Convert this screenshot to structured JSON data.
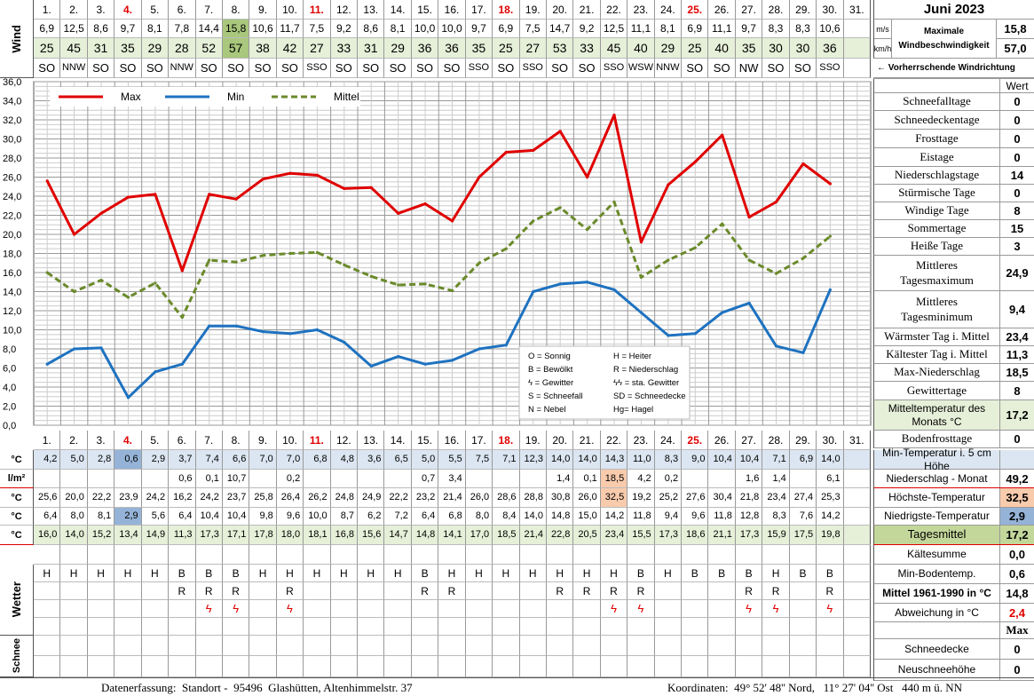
{
  "month_title": "Juni 2023",
  "section_labels": {
    "wind": "Wind",
    "schnee": "Schnee",
    "wetter": "Wetter",
    "unit_temp": "°C",
    "unit_precip": "l/m²",
    "unit_ms": "m/s",
    "unit_kmh": "km/h"
  },
  "days": [
    "1.",
    "2.",
    "3.",
    "4.",
    "5.",
    "6.",
    "7.",
    "8.",
    "9.",
    "10.",
    "11.",
    "12.",
    "13.",
    "14.",
    "15.",
    "16.",
    "17.",
    "18.",
    "19.",
    "20.",
    "21.",
    "22.",
    "23.",
    "24.",
    "25.",
    "26.",
    "27.",
    "28.",
    "29.",
    "30.",
    "31."
  ],
  "red_days": [
    3,
    10,
    17,
    24
  ],
  "wind_ms": [
    "6,9",
    "12,5",
    "8,6",
    "9,7",
    "8,1",
    "7,8",
    "14,4",
    "15,8",
    "10,6",
    "11,7",
    "7,5",
    "9,2",
    "8,6",
    "8,1",
    "10,0",
    "10,0",
    "9,7",
    "6,9",
    "7,5",
    "14,7",
    "9,2",
    "12,5",
    "11,1",
    "8,1",
    "6,9",
    "11,1",
    "9,7",
    "8,3",
    "8,3",
    "10,6",
    ""
  ],
  "wind_kmh": [
    "25",
    "45",
    "31",
    "35",
    "29",
    "28",
    "52",
    "57",
    "38",
    "42",
    "27",
    "33",
    "31",
    "29",
    "36",
    "36",
    "35",
    "25",
    "27",
    "53",
    "33",
    "45",
    "40",
    "29",
    "25",
    "40",
    "35",
    "30",
    "30",
    "36",
    ""
  ],
  "wind_dir": [
    "SO",
    "NNW",
    "SO",
    "SO",
    "SO",
    "NNW",
    "SO",
    "SO",
    "SO",
    "SO",
    "SSO",
    "SO",
    "SO",
    "SO",
    "SO",
    "SO",
    "SSO",
    "SO",
    "SSO",
    "SO",
    "SO",
    "SSO",
    "WSW",
    "NNW",
    "SO",
    "SO",
    "NW",
    "SO",
    "SO",
    "SSO",
    ""
  ],
  "max_wind": {
    "label": "Maximale Windbeschwindigkeit",
    "ms": "15,8",
    "kmh": "57,0"
  },
  "prevailing_note": "← Vorherrschende Windrichtung",
  "chart_data": {
    "type": "line",
    "x": [
      1,
      2,
      3,
      4,
      5,
      6,
      7,
      8,
      9,
      10,
      11,
      12,
      13,
      14,
      15,
      16,
      17,
      18,
      19,
      20,
      21,
      22,
      23,
      24,
      25,
      26,
      27,
      28,
      29,
      30
    ],
    "series": [
      {
        "name": "Max",
        "color": "#e00000",
        "values": [
          25.6,
          20.0,
          22.2,
          23.9,
          24.2,
          16.2,
          24.2,
          23.7,
          25.8,
          26.4,
          26.2,
          24.8,
          24.9,
          22.2,
          23.2,
          21.4,
          26.0,
          28.6,
          28.8,
          30.8,
          26.0,
          32.5,
          19.2,
          25.2,
          27.6,
          30.4,
          21.8,
          23.4,
          27.4,
          25.3
        ]
      },
      {
        "name": "Min",
        "color": "#1e72c0",
        "values": [
          6.4,
          8.0,
          8.1,
          2.9,
          5.6,
          6.4,
          10.4,
          10.4,
          9.8,
          9.6,
          10.0,
          8.7,
          6.2,
          7.2,
          6.4,
          6.8,
          8.0,
          8.4,
          14.0,
          14.8,
          15.0,
          14.2,
          11.8,
          9.4,
          9.6,
          11.8,
          12.8,
          8.3,
          7.6,
          14.2
        ]
      },
      {
        "name": "Mittel",
        "color": "#6a8a2a",
        "dashed": true,
        "values": [
          16.0,
          14.0,
          15.2,
          13.4,
          14.9,
          11.3,
          17.3,
          17.1,
          17.8,
          18.0,
          18.1,
          16.8,
          15.6,
          14.7,
          14.8,
          14.1,
          17.0,
          18.5,
          21.4,
          22.8,
          20.5,
          23.4,
          15.5,
          17.3,
          18.6,
          21.1,
          17.3,
          15.9,
          17.5,
          19.8
        ]
      }
    ],
    "ylim": [
      0,
      36
    ],
    "y_ticks": [
      "36,0",
      "34,0",
      "32,0",
      "30,0",
      "28,0",
      "26,0",
      "24,0",
      "22,0",
      "20,0",
      "18,0",
      "16,0",
      "14,0",
      "12,0",
      "10,0",
      "8,0",
      "6,0",
      "4,0",
      "2,0",
      "0,0"
    ],
    "grid": true,
    "legend_position": "top-left"
  },
  "weather_legend": [
    [
      "O = Sonnig",
      "H = Heiter"
    ],
    [
      "B = Bewölkt",
      "R = Niederschlag"
    ],
    [
      "ϟ = Gewitter",
      "ϟϟ = sta. Gewitter"
    ],
    [
      "S = Schneefall",
      "SD = Schneedecke"
    ],
    [
      "N = Nebel",
      "Hg= Hagel"
    ]
  ],
  "ground_min": [
    "4,2",
    "5,0",
    "2,8",
    "0,6",
    "2,9",
    "3,7",
    "7,4",
    "6,6",
    "7,0",
    "7,0",
    "6,8",
    "4,8",
    "3,6",
    "6,5",
    "5,0",
    "5,5",
    "7,5",
    "7,1",
    "12,3",
    "14,0",
    "14,0",
    "14,3",
    "11,0",
    "8,3",
    "9,0",
    "10,4",
    "10,4",
    "7,1",
    "6,9",
    "14,0",
    ""
  ],
  "precip": [
    "",
    "",
    "",
    "",
    "",
    "0,6",
    "0,1",
    "10,7",
    "",
    "0,2",
    "",
    "",
    "",
    "",
    "0,7",
    "3,4",
    "",
    "",
    "",
    "1,4",
    "0,1",
    "18,5",
    "4,2",
    "0,2",
    "",
    "",
    "1,6",
    "1,4",
    "",
    "6,1",
    ""
  ],
  "tmax": [
    "25,6",
    "20,0",
    "22,2",
    "23,9",
    "24,2",
    "16,2",
    "24,2",
    "23,7",
    "25,8",
    "26,4",
    "26,2",
    "24,8",
    "24,9",
    "22,2",
    "23,2",
    "21,4",
    "26,0",
    "28,6",
    "28,8",
    "30,8",
    "26,0",
    "32,5",
    "19,2",
    "25,2",
    "27,6",
    "30,4",
    "21,8",
    "23,4",
    "27,4",
    "25,3",
    ""
  ],
  "tmin": [
    "6,4",
    "8,0",
    "8,1",
    "2,9",
    "5,6",
    "6,4",
    "10,4",
    "10,4",
    "9,8",
    "9,6",
    "10,0",
    "8,7",
    "6,2",
    "7,2",
    "6,4",
    "6,8",
    "8,0",
    "8,4",
    "14,0",
    "14,8",
    "15,0",
    "14,2",
    "11,8",
    "9,4",
    "9,6",
    "11,8",
    "12,8",
    "8,3",
    "7,6",
    "14,2",
    ""
  ],
  "tmean": [
    "16,0",
    "14,0",
    "15,2",
    "13,4",
    "14,9",
    "11,3",
    "17,3",
    "17,1",
    "17,8",
    "18,0",
    "18,1",
    "16,8",
    "15,6",
    "14,7",
    "14,8",
    "14,1",
    "17,0",
    "18,5",
    "21,4",
    "22,8",
    "20,5",
    "23,4",
    "15,5",
    "17,3",
    "18,6",
    "21,1",
    "17,3",
    "15,9",
    "17,5",
    "19,8",
    ""
  ],
  "wetter1": [
    "H",
    "H",
    "H",
    "H",
    "H",
    "B",
    "B",
    "B",
    "H",
    "H",
    "H",
    "H",
    "H",
    "H",
    "B",
    "H",
    "H",
    "H",
    "H",
    "H",
    "H",
    "H",
    "B",
    "H",
    "B",
    "B",
    "B",
    "H",
    "B",
    "B",
    ""
  ],
  "wetter2": [
    "",
    "",
    "",
    "",
    "",
    "R",
    "R",
    "R",
    "",
    "R",
    "",
    "",
    "",
    "",
    "R",
    "R",
    "",
    "",
    "",
    "R",
    "R",
    "R",
    "R",
    "",
    "",
    "",
    "R",
    "R",
    "",
    "R",
    ""
  ],
  "wetter3": [
    "",
    "",
    "",
    "",
    "",
    "",
    "ϟ",
    "ϟ",
    "",
    "ϟ",
    "",
    "",
    "",
    "",
    "",
    "",
    "",
    "",
    "",
    "",
    "",
    "ϟ",
    "ϟ",
    "",
    "",
    "",
    "ϟ",
    "ϟ",
    "",
    "ϟ",
    ""
  ],
  "stats_header": "Wert",
  "stats": [
    {
      "label": "Schneefalltage",
      "value": "0"
    },
    {
      "label": "Schneedeckentage",
      "value": "0"
    },
    {
      "label": "Frosttage",
      "value": "0"
    },
    {
      "label": "Eistage",
      "value": "0"
    },
    {
      "label": "Niederschlagstage",
      "value": "14"
    },
    {
      "label": "Stürmische Tage",
      "value": "0"
    },
    {
      "label": "Windige Tage",
      "value": "8"
    },
    {
      "label": "Sommertage",
      "value": "15"
    },
    {
      "label": "Heiße Tage",
      "value": "3"
    },
    {
      "label": "Mittleres Tagesmaximum",
      "value": "24,9"
    },
    {
      "label": "Mittleres Tagesminimum",
      "value": "9,4"
    },
    {
      "label": "Wärmster Tag i. Mittel",
      "value": "23,4"
    },
    {
      "label": "Kältester Tag i. Mittel",
      "value": "11,3"
    },
    {
      "label": "Max-Niederschlag",
      "value": "18,5"
    },
    {
      "label": "Gewittertage",
      "value": "8"
    },
    {
      "label": "Mitteltemperatur des Monats °C",
      "value": "17,2"
    },
    {
      "label": "Bodenfrosttage",
      "value": "0"
    }
  ],
  "summary": [
    {
      "label": "Min-Temperatur i. 5 cm Höhe",
      "value": ""
    },
    {
      "label": "Niederschlag - Monat",
      "value": "49,2"
    },
    {
      "label": "Höchste-Temperatur",
      "value": "32,5"
    },
    {
      "label": "Niedrigste-Temperatur",
      "value": "2,9"
    },
    {
      "label": "Tagesmittel",
      "value": "17,2"
    },
    {
      "label": "Kältesumme",
      "value": "0,0"
    },
    {
      "label": "Min-Bodentemp.",
      "value": "0,6"
    },
    {
      "label": "Mittel 1961-1990 in °C",
      "value": "14,8"
    },
    {
      "label": "Abweichung in °C",
      "value": "2,4"
    },
    {
      "label": "",
      "value": "Max"
    },
    {
      "label": "Schneedecke",
      "value": "0"
    },
    {
      "label": "Neuschneehöhe",
      "value": "0"
    }
  ],
  "footer": {
    "left": "Datenerfassung:  Standort -  95496  Glashütten, Altenhimmelstr. 37",
    "right": "Koordinaten:  49° 52' 48'' Nord,   11° 27' 04'' Ost   440 m ü. NN"
  }
}
